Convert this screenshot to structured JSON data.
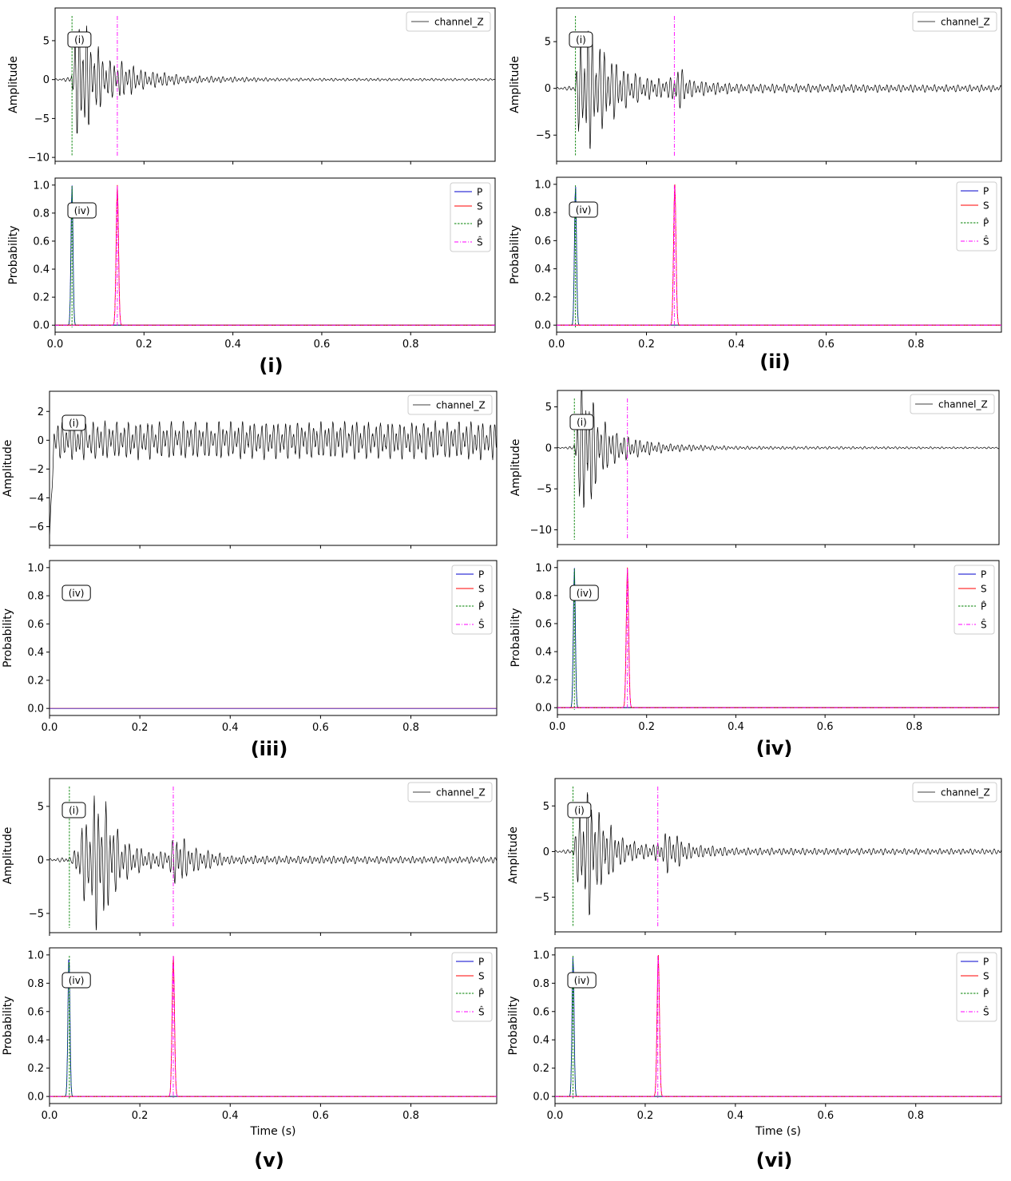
{
  "chart_data": [
    {
      "type": "line",
      "caption": "(i)",
      "xlim": [
        0,
        0.99
      ],
      "xticks": [
        0.0,
        0.2,
        0.4,
        0.6,
        0.8
      ],
      "x_tick_labels": [
        "0.0",
        "0.2",
        "0.4",
        "0.6",
        "0.8"
      ],
      "xlabel": "",
      "waveform": {
        "ylabel": "Amplitude",
        "ylim": [
          -10.5,
          9.2
        ],
        "yticks": [
          -10,
          -5,
          0,
          5
        ],
        "y_tick_labels": [
          "−10",
          "−5",
          "0",
          "5"
        ],
        "legend": [
          "channel_Z"
        ],
        "tag": "(i)",
        "p_pick": 0.038,
        "s_pick": 0.14,
        "envelope": [
          [
            0.0,
            0.1
          ],
          [
            0.035,
            0.3
          ],
          [
            0.045,
            6.0
          ],
          [
            0.06,
            9.5
          ],
          [
            0.085,
            5.0
          ],
          [
            0.12,
            2.5
          ],
          [
            0.15,
            2.4
          ],
          [
            0.2,
            1.2
          ],
          [
            0.3,
            0.5
          ],
          [
            0.5,
            0.2
          ],
          [
            0.99,
            0.15
          ]
        ]
      },
      "probability": {
        "ylabel": "Probability",
        "ylim": [
          -0.05,
          1.05
        ],
        "yticks": [
          0.0,
          0.2,
          0.4,
          0.6,
          0.8,
          1.0
        ],
        "y_tick_labels": [
          "0.0",
          "0.2",
          "0.4",
          "0.6",
          "0.8",
          "1.0"
        ],
        "legend": [
          "P",
          "S",
          "P̂",
          "Ŝ"
        ],
        "tag": "(iv)",
        "p_peak": {
          "x": 0.038,
          "height": 1.0
        },
        "s_peak": {
          "x": 0.14,
          "height": 1.0
        },
        "p_pick": 0.038,
        "s_pick": 0.14
      }
    },
    {
      "type": "line",
      "caption": "(ii)",
      "xlim": [
        0,
        0.99
      ],
      "xticks": [
        0.0,
        0.2,
        0.4,
        0.6,
        0.8
      ],
      "x_tick_labels": [
        "0.0",
        "0.2",
        "0.4",
        "0.6",
        "0.8"
      ],
      "xlabel": "",
      "waveform": {
        "ylabel": "Amplitude",
        "ylim": [
          -7.8,
          8.6
        ],
        "yticks": [
          -5,
          0,
          5
        ],
        "y_tick_labels": [
          "−5",
          "0",
          "5"
        ],
        "legend": [
          "channel_Z"
        ],
        "tag": "(i)",
        "p_pick": 0.042,
        "s_pick": 0.262,
        "envelope": [
          [
            0.0,
            0.1
          ],
          [
            0.04,
            0.3
          ],
          [
            0.05,
            5.0
          ],
          [
            0.07,
            7.0
          ],
          [
            0.1,
            4.5
          ],
          [
            0.15,
            2.2
          ],
          [
            0.2,
            1.2
          ],
          [
            0.25,
            1.0
          ],
          [
            0.27,
            2.5
          ],
          [
            0.3,
            0.9
          ],
          [
            0.4,
            0.5
          ],
          [
            0.99,
            0.35
          ]
        ]
      },
      "probability": {
        "ylabel": "Probability",
        "ylim": [
          -0.05,
          1.05
        ],
        "yticks": [
          0.0,
          0.2,
          0.4,
          0.6,
          0.8,
          1.0
        ],
        "y_tick_labels": [
          "0.0",
          "0.2",
          "0.4",
          "0.6",
          "0.8",
          "1.0"
        ],
        "legend": [
          "P",
          "S",
          "P̂",
          "Ŝ"
        ],
        "tag": "(iv)",
        "p_peak": {
          "x": 0.042,
          "height": 1.0
        },
        "s_peak": {
          "x": 0.263,
          "height": 1.0
        },
        "p_pick": 0.042,
        "s_pick": 0.262
      }
    },
    {
      "type": "line",
      "caption": "(iii)",
      "xlim": [
        0,
        0.99
      ],
      "xticks": [
        0.0,
        0.2,
        0.4,
        0.6,
        0.8
      ],
      "x_tick_labels": [
        "0.0",
        "0.2",
        "0.4",
        "0.6",
        "0.8"
      ],
      "xlabel": "",
      "waveform": {
        "ylabel": "Amplitude",
        "ylim": [
          -7.3,
          3.4
        ],
        "yticks": [
          -6,
          -4,
          -2,
          0,
          2
        ],
        "y_tick_labels": [
          "−6",
          "−4",
          "−2",
          "0",
          "2"
        ],
        "legend": [
          "channel_Z"
        ],
        "tag": "(i)",
        "initial_dip": -6.8,
        "envelope": [
          [
            0.0,
            1.3
          ],
          [
            0.99,
            1.3
          ]
        ]
      },
      "probability": {
        "ylabel": "Probability",
        "ylim": [
          -0.05,
          1.05
        ],
        "yticks": [
          0.0,
          0.2,
          0.4,
          0.6,
          0.8,
          1.0
        ],
        "y_tick_labels": [
          "0.0",
          "0.2",
          "0.4",
          "0.6",
          "0.8",
          "1.0"
        ],
        "legend": [
          "P",
          "S",
          "P̂",
          "Ŝ"
        ],
        "tag": "(iv)"
      }
    },
    {
      "type": "line",
      "caption": "(iv)",
      "xlim": [
        0,
        0.99
      ],
      "xticks": [
        0.0,
        0.2,
        0.4,
        0.6,
        0.8
      ],
      "x_tick_labels": [
        "0.0",
        "0.2",
        "0.4",
        "0.6",
        "0.8"
      ],
      "xlabel": "",
      "waveform": {
        "ylabel": "Amplitude",
        "ylim": [
          -11.8,
          7.0
        ],
        "yticks": [
          -10,
          -5,
          0,
          5
        ],
        "y_tick_labels": [
          "−10",
          "−5",
          "0",
          "5"
        ],
        "legend": [
          "channel_Z"
        ],
        "tag": "(i)",
        "p_pick": 0.038,
        "s_pick": 0.157,
        "envelope": [
          [
            0.0,
            0.05
          ],
          [
            0.036,
            0.2
          ],
          [
            0.045,
            5.0
          ],
          [
            0.06,
            10.0
          ],
          [
            0.09,
            4.0
          ],
          [
            0.13,
            2.0
          ],
          [
            0.17,
            1.2
          ],
          [
            0.25,
            0.5
          ],
          [
            0.4,
            0.2
          ],
          [
            0.99,
            0.1
          ]
        ]
      },
      "probability": {
        "ylabel": "Probability",
        "ylim": [
          -0.05,
          1.05
        ],
        "yticks": [
          0.0,
          0.2,
          0.4,
          0.6,
          0.8,
          1.0
        ],
        "y_tick_labels": [
          "0.0",
          "0.2",
          "0.4",
          "0.6",
          "0.8",
          "1.0"
        ],
        "legend": [
          "P",
          "S",
          "P̂",
          "Ŝ"
        ],
        "tag": "(iv)",
        "p_peak": {
          "x": 0.038,
          "height": 1.0
        },
        "s_peak": {
          "x": 0.157,
          "height": 1.0
        },
        "p_pick": 0.038,
        "s_pick": 0.157
      }
    },
    {
      "type": "line",
      "caption": "(v)",
      "xlim": [
        0,
        0.99
      ],
      "xticks": [
        0.0,
        0.2,
        0.4,
        0.6,
        0.8
      ],
      "x_tick_labels": [
        "0.0",
        "0.2",
        "0.4",
        "0.6",
        "0.8"
      ],
      "xlabel": "Time (s)",
      "waveform": {
        "ylabel": "Amplitude",
        "ylim": [
          -6.8,
          7.6
        ],
        "yticks": [
          -5,
          0,
          5
        ],
        "y_tick_labels": [
          "−5",
          "0",
          "5"
        ],
        "legend": [
          "channel_Z"
        ],
        "tag": "(i)",
        "p_pick": 0.044,
        "s_pick": 0.274,
        "envelope": [
          [
            0.0,
            0.1
          ],
          [
            0.05,
            0.3
          ],
          [
            0.07,
            3.0
          ],
          [
            0.1,
            6.5
          ],
          [
            0.13,
            5.0
          ],
          [
            0.16,
            2.0
          ],
          [
            0.22,
            0.8
          ],
          [
            0.26,
            0.8
          ],
          [
            0.28,
            2.6
          ],
          [
            0.32,
            1.2
          ],
          [
            0.4,
            0.4
          ],
          [
            0.99,
            0.3
          ]
        ]
      },
      "probability": {
        "ylabel": "Probability",
        "ylim": [
          -0.05,
          1.05
        ],
        "yticks": [
          0.0,
          0.2,
          0.4,
          0.6,
          0.8,
          1.0
        ],
        "y_tick_labels": [
          "0.0",
          "0.2",
          "0.4",
          "0.6",
          "0.8",
          "1.0"
        ],
        "legend": [
          "P",
          "S",
          "P̂",
          "Ŝ"
        ],
        "tag": "(iv)",
        "p_peak": {
          "x": 0.043,
          "height": 1.0
        },
        "s_peak": {
          "x": 0.274,
          "height": 1.0
        },
        "p_pick": 0.044,
        "s_pick": 0.274
      }
    },
    {
      "type": "line",
      "caption": "(vi)",
      "xlim": [
        0,
        0.99
      ],
      "xticks": [
        0.0,
        0.2,
        0.4,
        0.6,
        0.8
      ],
      "x_tick_labels": [
        "0.0",
        "0.2",
        "0.4",
        "0.6",
        "0.8"
      ],
      "xlabel": "Time (s)",
      "waveform": {
        "ylabel": "Amplitude",
        "ylim": [
          -8.8,
          8.0
        ],
        "yticks": [
          -5,
          0,
          5
        ],
        "y_tick_labels": [
          "−5",
          "0",
          "5"
        ],
        "legend": [
          "channel_Z"
        ],
        "tag": "(i)",
        "p_pick": 0.04,
        "s_pick": 0.228,
        "envelope": [
          [
            0.0,
            0.1
          ],
          [
            0.04,
            0.3
          ],
          [
            0.055,
            5.0
          ],
          [
            0.075,
            7.5
          ],
          [
            0.1,
            4.0
          ],
          [
            0.15,
            1.5
          ],
          [
            0.2,
            0.8
          ],
          [
            0.23,
            1.0
          ],
          [
            0.25,
            2.6
          ],
          [
            0.3,
            0.8
          ],
          [
            0.4,
            0.4
          ],
          [
            0.99,
            0.3
          ]
        ]
      },
      "probability": {
        "ylabel": "Probability",
        "ylim": [
          -0.05,
          1.05
        ],
        "yticks": [
          0.0,
          0.2,
          0.4,
          0.6,
          0.8,
          1.0
        ],
        "y_tick_labels": [
          "0.0",
          "0.2",
          "0.4",
          "0.6",
          "0.8",
          "1.0"
        ],
        "legend": [
          "P",
          "S",
          "P̂",
          "Ŝ"
        ],
        "tag": "(iv)",
        "p_peak": {
          "x": 0.04,
          "height": 1.0
        },
        "s_peak": {
          "x": 0.229,
          "height": 1.0
        },
        "p_pick": 0.04,
        "s_pick": 0.228
      }
    }
  ],
  "colors": {
    "waveform": "#000000",
    "P": "#0000cc",
    "S": "#ff0000",
    "P_hat": "#008000",
    "S_hat": "#ff00ff",
    "frame": "#000000"
  }
}
